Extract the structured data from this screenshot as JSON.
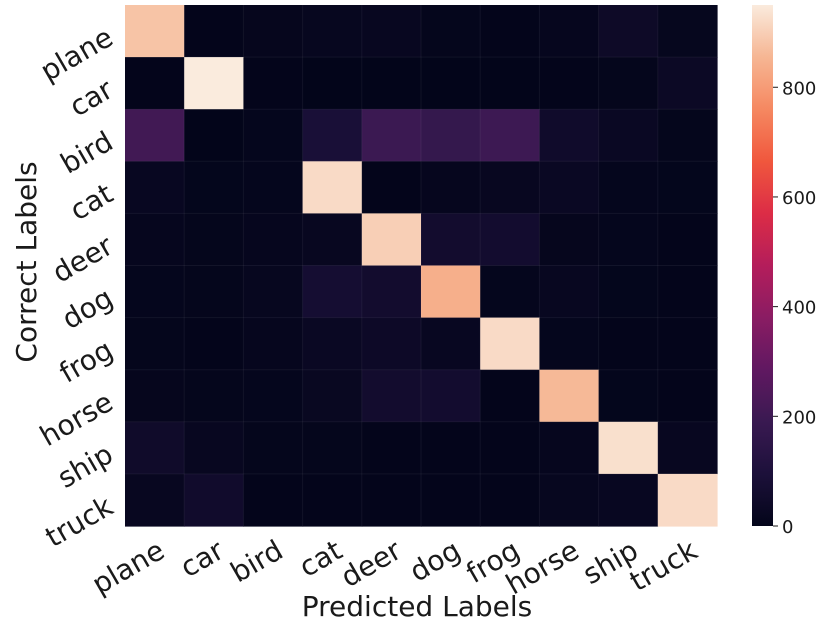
{
  "chart_data": {
    "type": "heatmap",
    "xlabel": "Predicted Labels",
    "ylabel": "Correct Labels",
    "x_categories": [
      "plane",
      "car",
      "bird",
      "cat",
      "deer",
      "dog",
      "frog",
      "horse",
      "ship",
      "truck"
    ],
    "y_categories": [
      "plane",
      "car",
      "bird",
      "cat",
      "deer",
      "dog",
      "frog",
      "horse",
      "ship",
      "truck"
    ],
    "values": [
      [
        880,
        3,
        10,
        14,
        18,
        6,
        4,
        12,
        40,
        13
      ],
      [
        4,
        950,
        2,
        1,
        1,
        0,
        0,
        2,
        6,
        34
      ],
      [
        210,
        0,
        8,
        85,
        195,
        175,
        200,
        50,
        28,
        6
      ],
      [
        20,
        5,
        9,
        920,
        3,
        12,
        18,
        28,
        9,
        5
      ],
      [
        12,
        6,
        12,
        18,
        900,
        60,
        62,
        10,
        8,
        4
      ],
      [
        8,
        6,
        14,
        70,
        60,
        840,
        8,
        18,
        5,
        4
      ],
      [
        6,
        4,
        12,
        28,
        38,
        20,
        920,
        8,
        4,
        3
      ],
      [
        10,
        6,
        8,
        22,
        60,
        62,
        4,
        860,
        5,
        3
      ],
      [
        48,
        18,
        6,
        6,
        4,
        4,
        2,
        12,
        930,
        18
      ],
      [
        18,
        52,
        3,
        4,
        2,
        2,
        3,
        14,
        20,
        920
      ]
    ],
    "colorbar": {
      "min": 0,
      "max": 950,
      "ticks": [
        0,
        200,
        400,
        600,
        800
      ]
    },
    "colormap": "rocket"
  }
}
